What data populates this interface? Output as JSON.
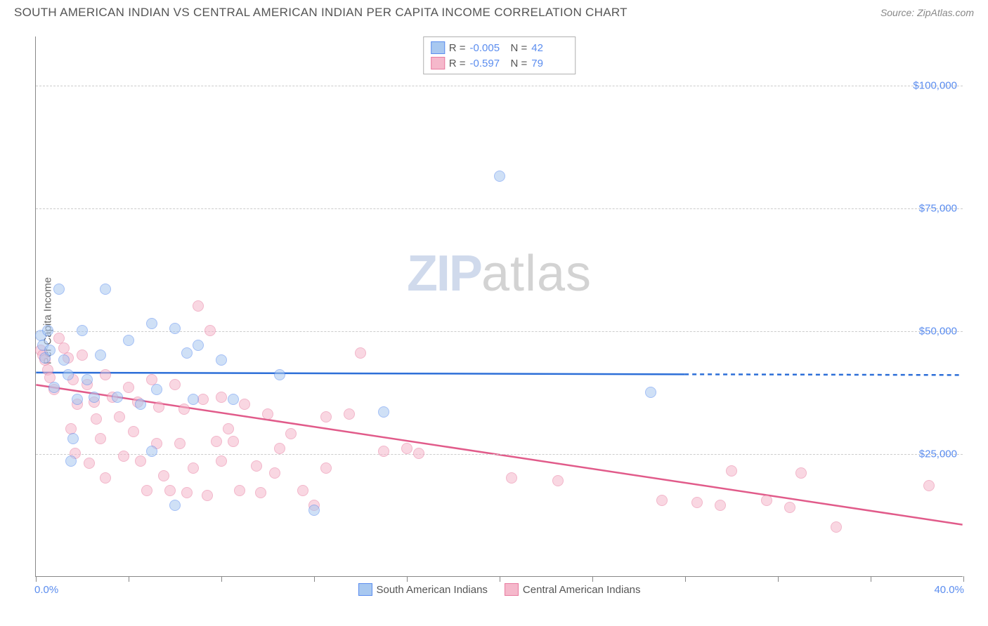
{
  "header": {
    "title": "SOUTH AMERICAN INDIAN VS CENTRAL AMERICAN INDIAN PER CAPITA INCOME CORRELATION CHART",
    "source": "Source: ZipAtlas.com"
  },
  "ylabel": "Per Capita Income",
  "watermark": {
    "zip": "ZIP",
    "atlas": "atlas"
  },
  "chart": {
    "type": "scatter",
    "xlim": [
      0,
      40
    ],
    "ylim": [
      0,
      110000
    ],
    "x_unit": "%",
    "background_color": "#ffffff",
    "grid_color": "#cccccc",
    "grid_dash": "4,4",
    "axis_color": "#888888",
    "ytick_values": [
      25000,
      50000,
      75000,
      100000
    ],
    "ytick_labels": [
      "$25,000",
      "$50,000",
      "$75,000",
      "$100,000"
    ],
    "ytick_color": "#5b8def",
    "ytick_fontsize": 15,
    "xtick_positions": [
      0,
      4,
      8,
      12,
      16,
      20,
      24,
      28,
      32,
      36,
      40
    ],
    "xlim_labels": [
      "0.0%",
      "40.0%"
    ],
    "xlim_label_color": "#5b8def",
    "ylabel_fontsize": 15,
    "ylabel_color": "#666666",
    "point_radius": 8,
    "point_opacity": 0.55,
    "series": [
      {
        "name": "South American Indians",
        "fill": "#a8c8f0",
        "stroke": "#5b8def",
        "trend_color": "#2d6fd8",
        "trend_width": 2.5,
        "trend_y_start": 41500,
        "trend_y_end": 41000,
        "trend_dash_after_x": 28,
        "R": "-0.005",
        "N": "42",
        "points": [
          [
            0.2,
            49000
          ],
          [
            0.3,
            47000
          ],
          [
            0.4,
            44500
          ],
          [
            0.5,
            50000
          ],
          [
            0.6,
            46000
          ],
          [
            0.8,
            38500
          ],
          [
            1.0,
            58500
          ],
          [
            1.2,
            44000
          ],
          [
            1.4,
            41000
          ],
          [
            1.6,
            28000
          ],
          [
            1.8,
            36000
          ],
          [
            1.5,
            23500
          ],
          [
            2.0,
            50000
          ],
          [
            2.2,
            40000
          ],
          [
            2.5,
            36500
          ],
          [
            2.8,
            45000
          ],
          [
            3.0,
            58500
          ],
          [
            3.5,
            36500
          ],
          [
            4.0,
            48000
          ],
          [
            4.5,
            35000
          ],
          [
            5.0,
            51500
          ],
          [
            5.2,
            38000
          ],
          [
            5.0,
            25500
          ],
          [
            6.0,
            50500
          ],
          [
            6.5,
            45500
          ],
          [
            6.8,
            36000
          ],
          [
            6.0,
            14500
          ],
          [
            7.0,
            47000
          ],
          [
            8.0,
            44000
          ],
          [
            8.5,
            36000
          ],
          [
            10.5,
            41000
          ],
          [
            12.0,
            13500
          ],
          [
            15.0,
            33500
          ],
          [
            20.0,
            81500
          ],
          [
            26.5,
            37500
          ]
        ]
      },
      {
        "name": "Central American Indians",
        "fill": "#f5b8cb",
        "stroke": "#e87ba0",
        "trend_color": "#e15b8a",
        "trend_width": 2.5,
        "trend_y_start": 39000,
        "trend_y_end": 10500,
        "trend_dash_after_x": 40,
        "R": "-0.597",
        "N": "79",
        "points": [
          [
            0.2,
            46000
          ],
          [
            0.3,
            45000
          ],
          [
            0.4,
            44000
          ],
          [
            0.5,
            42000
          ],
          [
            0.6,
            40500
          ],
          [
            0.8,
            38000
          ],
          [
            1.0,
            48500
          ],
          [
            1.2,
            46500
          ],
          [
            1.4,
            44500
          ],
          [
            1.6,
            40000
          ],
          [
            1.8,
            35000
          ],
          [
            1.5,
            30000
          ],
          [
            1.7,
            25000
          ],
          [
            2.0,
            45000
          ],
          [
            2.2,
            39000
          ],
          [
            2.5,
            35500
          ],
          [
            2.8,
            28000
          ],
          [
            2.3,
            23000
          ],
          [
            2.6,
            32000
          ],
          [
            3.0,
            41000
          ],
          [
            3.3,
            36500
          ],
          [
            3.6,
            32500
          ],
          [
            3.8,
            24500
          ],
          [
            3.0,
            20000
          ],
          [
            4.0,
            38500
          ],
          [
            4.2,
            29500
          ],
          [
            4.5,
            23500
          ],
          [
            4.8,
            17500
          ],
          [
            4.4,
            35500
          ],
          [
            5.0,
            40000
          ],
          [
            5.2,
            27000
          ],
          [
            5.5,
            20500
          ],
          [
            5.8,
            17500
          ],
          [
            5.3,
            34500
          ],
          [
            6.0,
            39000
          ],
          [
            6.2,
            27000
          ],
          [
            6.5,
            17000
          ],
          [
            6.8,
            22000
          ],
          [
            6.4,
            34000
          ],
          [
            7.0,
            55000
          ],
          [
            7.5,
            50000
          ],
          [
            7.2,
            36000
          ],
          [
            7.8,
            27500
          ],
          [
            7.4,
            16500
          ],
          [
            8.0,
            36500
          ],
          [
            8.5,
            27500
          ],
          [
            8.0,
            23500
          ],
          [
            8.8,
            17500
          ],
          [
            8.3,
            30000
          ],
          [
            9.0,
            35000
          ],
          [
            9.5,
            22500
          ],
          [
            9.7,
            17000
          ],
          [
            10.0,
            33000
          ],
          [
            10.5,
            26000
          ],
          [
            10.3,
            21000
          ],
          [
            11.0,
            29000
          ],
          [
            11.5,
            17500
          ],
          [
            12.0,
            14500
          ],
          [
            12.5,
            32500
          ],
          [
            12.5,
            22000
          ],
          [
            13.5,
            33000
          ],
          [
            14.0,
            45500
          ],
          [
            15.0,
            25500
          ],
          [
            16.0,
            26000
          ],
          [
            16.5,
            25000
          ],
          [
            20.5,
            20000
          ],
          [
            22.5,
            19500
          ],
          [
            27.0,
            15500
          ],
          [
            28.5,
            15000
          ],
          [
            29.5,
            14500
          ],
          [
            30.0,
            21500
          ],
          [
            31.5,
            15500
          ],
          [
            32.5,
            14000
          ],
          [
            33.0,
            21000
          ],
          [
            34.5,
            10000
          ],
          [
            38.5,
            18500
          ]
        ]
      }
    ]
  },
  "legend_top": {
    "border_color": "#b0b0b0",
    "bg": "#ffffff",
    "label_color": "#555555",
    "value_color": "#5b8def",
    "r_label": "R =",
    "n_label": "N ="
  },
  "legend_bottom": {
    "fontsize": 15,
    "color": "#555555"
  }
}
